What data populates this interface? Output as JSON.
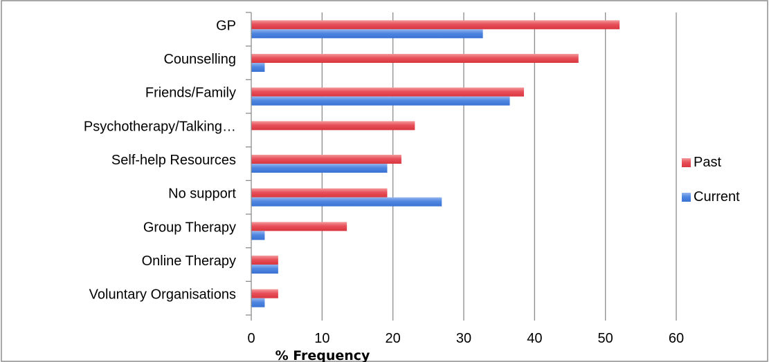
{
  "chart_data": {
    "type": "bar",
    "orientation": "horizontal",
    "categories": [
      "GP",
      "Counselling",
      "Friends/Family",
      "Psychotherapy/Talking…",
      "Self-help Resources",
      "No support",
      "Group Therapy",
      "Online Therapy",
      "Voluntary Organisations"
    ],
    "series": [
      {
        "name": "Past",
        "color": "#e8505a",
        "values": [
          52,
          46.2,
          38.5,
          23.1,
          21.2,
          19.2,
          13.5,
          3.8,
          3.8
        ]
      },
      {
        "name": "Current",
        "color": "#4f86e0",
        "values": [
          32.7,
          1.9,
          36.5,
          0,
          19.2,
          26.9,
          1.9,
          3.8,
          1.9
        ]
      }
    ],
    "xlabel": "% Frequency",
    "ylabel": "",
    "xlim": [
      0,
      60
    ],
    "xticks": [
      0,
      10,
      20,
      30,
      40,
      50,
      60
    ],
    "grid": "vertical",
    "legend": "right"
  }
}
